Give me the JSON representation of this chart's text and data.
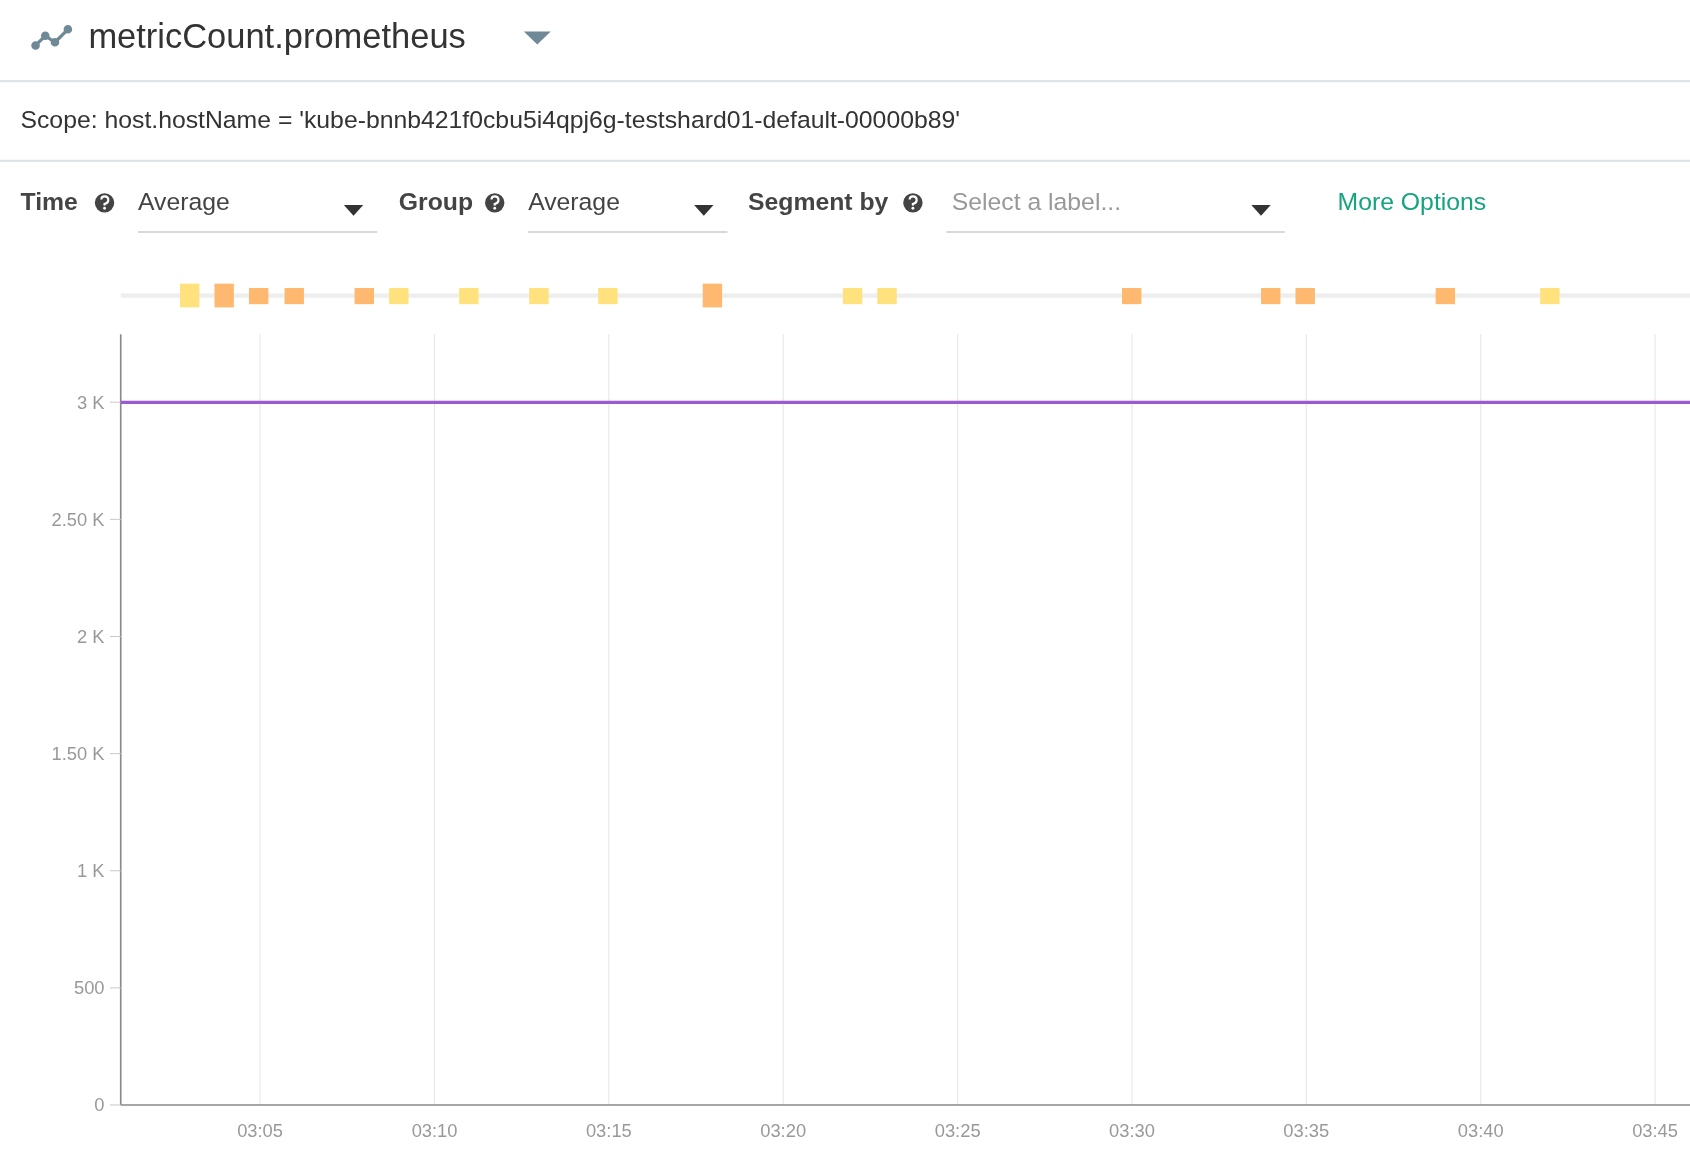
{
  "chart_data": {
    "type": "line",
    "title": "metricCount.prometheus",
    "subtitle": "Scope: host.hostName = 'kube-bnnb421f0cbu5i4qpj6g-testshard01-default-00000b89'",
    "annotations": [
      "Time",
      "Average",
      "Group",
      "Average",
      "Segment by",
      "Select a label...",
      "More Options"
    ],
    "xlim": [
      3.0167,
      3.7667
    ],
    "xticks": [
      {
        "value": 3.0833,
        "label": "03:05"
      },
      {
        "value": 3.1667,
        "label": "03:10"
      },
      {
        "value": 3.25,
        "label": "03:15"
      },
      {
        "value": 3.3333,
        "label": "03:20"
      },
      {
        "value": 3.4167,
        "label": "03:25"
      },
      {
        "value": 3.5,
        "label": "03:30"
      },
      {
        "value": 3.5833,
        "label": "03:35"
      },
      {
        "value": 3.6667,
        "label": "03:40"
      },
      {
        "value": 3.75,
        "label": "03:45"
      }
    ],
    "ylim": [
      0,
      3290
    ],
    "yticks": [
      0,
      500,
      {
        "value": 1000,
        "label": "1 K"
      },
      {
        "value": 1500,
        "label": "1.50 K"
      },
      {
        "value": 2000,
        "label": "2 K"
      },
      {
        "value": 2500,
        "label": "2.50 K"
      },
      {
        "value": 3000,
        "label": "3 K"
      }
    ],
    "grid": "x",
    "series": [
      {
        "color": "#9b59d6",
        "x": [
          3.0167,
          3.7667
        ],
        "values": [
          3000,
          3000
        ]
      }
    ]
  }
}
